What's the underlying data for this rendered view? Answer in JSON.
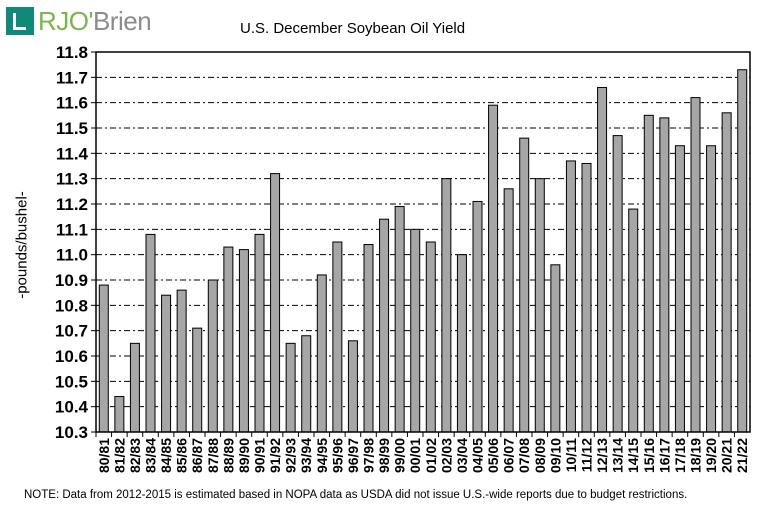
{
  "logo": {
    "brand_part1": "RJO'",
    "brand_part2": "Brien"
  },
  "chart_data": {
    "type": "bar",
    "title": "U.S. December Soybean Oil Yield",
    "xlabel": "",
    "ylabel": "-pounds/bushel-",
    "ylim": [
      10.3,
      11.8
    ],
    "yticks": [
      "10.3",
      "10.4",
      "10.5",
      "10.6",
      "10.7",
      "10.8",
      "10.9",
      "11.0",
      "11.1",
      "11.2",
      "11.3",
      "11.4",
      "11.5",
      "11.6",
      "11.7",
      "11.8"
    ],
    "grid": true,
    "categories": [
      "80/81",
      "81/82",
      "82/83",
      "83/84",
      "84/85",
      "85/86",
      "86/87",
      "87/88",
      "88/89",
      "89/90",
      "90/91",
      "91/92",
      "92/93",
      "93/94",
      "94/95",
      "95/96",
      "96/97",
      "97/98",
      "98/99",
      "99/00",
      "00/01",
      "01/02",
      "02/03",
      "03/04",
      "04/05",
      "05/06",
      "06/07",
      "07/08",
      "08/09",
      "09/10",
      "10/11",
      "11/12",
      "12/13",
      "13/14",
      "14/15",
      "15/16",
      "16/17",
      "17/18",
      "18/19",
      "19/20",
      "20/21",
      "21/22"
    ],
    "values": [
      10.88,
      10.44,
      10.65,
      11.08,
      10.84,
      10.86,
      10.71,
      10.9,
      11.03,
      11.02,
      11.08,
      11.32,
      10.65,
      10.68,
      10.92,
      11.05,
      10.66,
      11.04,
      11.14,
      11.19,
      11.1,
      11.05,
      11.3,
      11.0,
      11.21,
      11.59,
      11.26,
      11.46,
      11.3,
      10.96,
      11.37,
      11.36,
      11.66,
      11.47,
      11.18,
      11.55,
      11.54,
      11.43,
      11.62,
      11.43,
      11.56,
      11.73
    ],
    "bar_color": "#a6a6a6",
    "note": "NOTE: Data from 2012-2015 is estimated based in NOPA data as USDA did not issue U.S.-wide reports due to budget restrictions."
  }
}
